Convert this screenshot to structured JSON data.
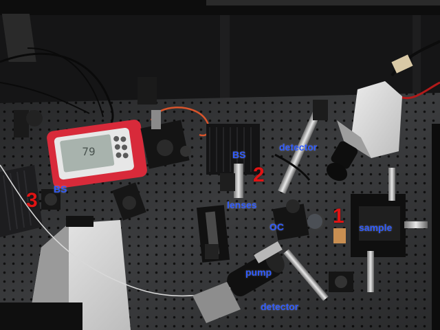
{
  "labels": {
    "num_1": "1",
    "num_2": "2",
    "num_3": "3",
    "bs_middle": "BS",
    "bs_left": "BS",
    "detector_top": "detector",
    "detector_bottom": "detector",
    "lenses": "lenses",
    "oc": "OC",
    "sample": "sample",
    "pump": "pump"
  },
  "power_meter": {
    "display": "79"
  },
  "colors": {
    "label_text": "#2f5bff",
    "number_text": "#e01414",
    "breadboard": "#3a3b3d",
    "meter_case": "#d82a3a"
  }
}
